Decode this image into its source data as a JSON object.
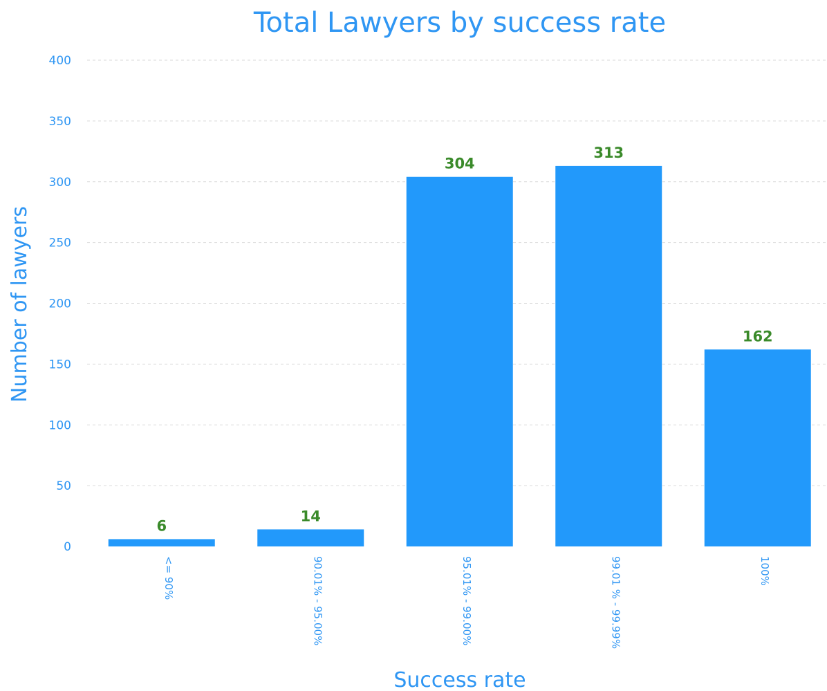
{
  "chart_data": {
    "type": "bar",
    "title": "Total Lawyers by success rate",
    "xlabel": "Success rate",
    "ylabel": "Number of lawyers",
    "categories": [
      "<= 90%",
      "90.01% - 95.00%",
      "95.01% - 99.00%",
      "99.01 % - 99.99%",
      "100%"
    ],
    "values": [
      6,
      14,
      304,
      313,
      162
    ],
    "ylim": [
      0,
      400
    ],
    "yticks": [
      0,
      50,
      100,
      150,
      200,
      250,
      300,
      350,
      400
    ],
    "grid": true,
    "legend": "none",
    "colors": {
      "bar": "#2299fb",
      "text": "#2f96f3",
      "data_label": "#3a8a2a"
    }
  }
}
